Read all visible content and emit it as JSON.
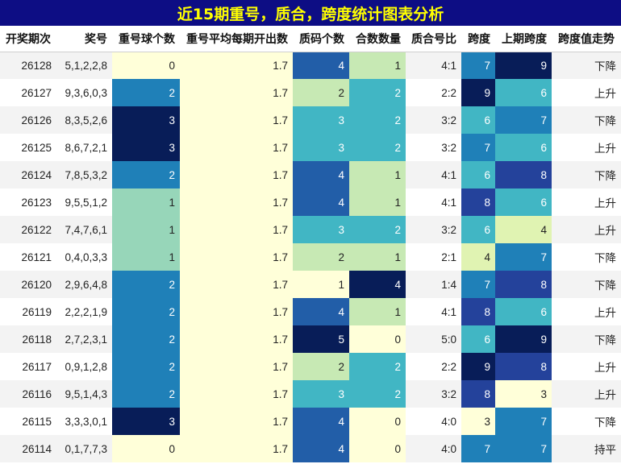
{
  "title": "近15期重号，质合，跨度统计图表分析",
  "colors": {
    "title_bg": "#0d0d84",
    "title_text": "#ffff00",
    "colormap": "YlGnBu"
  },
  "chart_data": {
    "type": "table",
    "columns": [
      "开奖期次",
      "奖号",
      "重号球个数",
      "重号平均每期开出数",
      "质码个数",
      "合数数量",
      "质合号比",
      "跨度",
      "上期跨度",
      "跨度值走势"
    ],
    "rows": [
      {
        "period": "26128",
        "numbers": "5,1,2,2,8",
        "repeat": 0,
        "avg": 1.7,
        "prime": 4,
        "composite": 1,
        "ratio": "4:1",
        "span": 7,
        "prev_span": 9,
        "trend": "下降"
      },
      {
        "period": "26127",
        "numbers": "9,3,6,0,3",
        "repeat": 2,
        "avg": 1.7,
        "prime": 2,
        "composite": 2,
        "ratio": "2:2",
        "span": 9,
        "prev_span": 6,
        "trend": "上升"
      },
      {
        "period": "26126",
        "numbers": "8,3,5,2,6",
        "repeat": 3,
        "avg": 1.7,
        "prime": 3,
        "composite": 2,
        "ratio": "3:2",
        "span": 6,
        "prev_span": 7,
        "trend": "下降"
      },
      {
        "period": "26125",
        "numbers": "8,6,7,2,1",
        "repeat": 3,
        "avg": 1.7,
        "prime": 3,
        "composite": 2,
        "ratio": "3:2",
        "span": 7,
        "prev_span": 6,
        "trend": "上升"
      },
      {
        "period": "26124",
        "numbers": "7,8,5,3,2",
        "repeat": 2,
        "avg": 1.7,
        "prime": 4,
        "composite": 1,
        "ratio": "4:1",
        "span": 6,
        "prev_span": 8,
        "trend": "下降"
      },
      {
        "period": "26123",
        "numbers": "9,5,5,1,2",
        "repeat": 1,
        "avg": 1.7,
        "prime": 4,
        "composite": 1,
        "ratio": "4:1",
        "span": 8,
        "prev_span": 6,
        "trend": "上升"
      },
      {
        "period": "26122",
        "numbers": "7,4,7,6,1",
        "repeat": 1,
        "avg": 1.7,
        "prime": 3,
        "composite": 2,
        "ratio": "3:2",
        "span": 6,
        "prev_span": 4,
        "trend": "上升"
      },
      {
        "period": "26121",
        "numbers": "0,4,0,3,3",
        "repeat": 1,
        "avg": 1.7,
        "prime": 2,
        "composite": 1,
        "ratio": "2:1",
        "span": 4,
        "prev_span": 7,
        "trend": "下降"
      },
      {
        "period": "26120",
        "numbers": "2,9,6,4,8",
        "repeat": 2,
        "avg": 1.7,
        "prime": 1,
        "composite": 4,
        "ratio": "1:4",
        "span": 7,
        "prev_span": 8,
        "trend": "下降"
      },
      {
        "period": "26119",
        "numbers": "2,2,2,1,9",
        "repeat": 2,
        "avg": 1.7,
        "prime": 4,
        "composite": 1,
        "ratio": "4:1",
        "span": 8,
        "prev_span": 6,
        "trend": "上升"
      },
      {
        "period": "26118",
        "numbers": "2,7,2,3,1",
        "repeat": 2,
        "avg": 1.7,
        "prime": 5,
        "composite": 0,
        "ratio": "5:0",
        "span": 6,
        "prev_span": 9,
        "trend": "下降"
      },
      {
        "period": "26117",
        "numbers": "0,9,1,2,8",
        "repeat": 2,
        "avg": 1.7,
        "prime": 2,
        "composite": 2,
        "ratio": "2:2",
        "span": 9,
        "prev_span": 8,
        "trend": "上升"
      },
      {
        "period": "26116",
        "numbers": "9,5,1,4,3",
        "repeat": 2,
        "avg": 1.7,
        "prime": 3,
        "composite": 2,
        "ratio": "3:2",
        "span": 8,
        "prev_span": 3,
        "trend": "上升"
      },
      {
        "period": "26115",
        "numbers": "3,3,3,0,1",
        "repeat": 3,
        "avg": 1.7,
        "prime": 4,
        "composite": 0,
        "ratio": "4:0",
        "span": 3,
        "prev_span": 7,
        "trend": "下降"
      },
      {
        "period": "26114",
        "numbers": "0,1,7,7,3",
        "repeat": 0,
        "avg": 1.7,
        "prime": 4,
        "composite": 0,
        "ratio": "4:0",
        "span": 7,
        "prev_span": 7,
        "trend": "持平"
      }
    ],
    "color_ranges": {
      "repeat": [
        0,
        3
      ],
      "prime": [
        1,
        5
      ],
      "composite": [
        0,
        4
      ],
      "span": [
        3,
        9
      ],
      "prev_span": [
        3,
        9
      ]
    }
  }
}
